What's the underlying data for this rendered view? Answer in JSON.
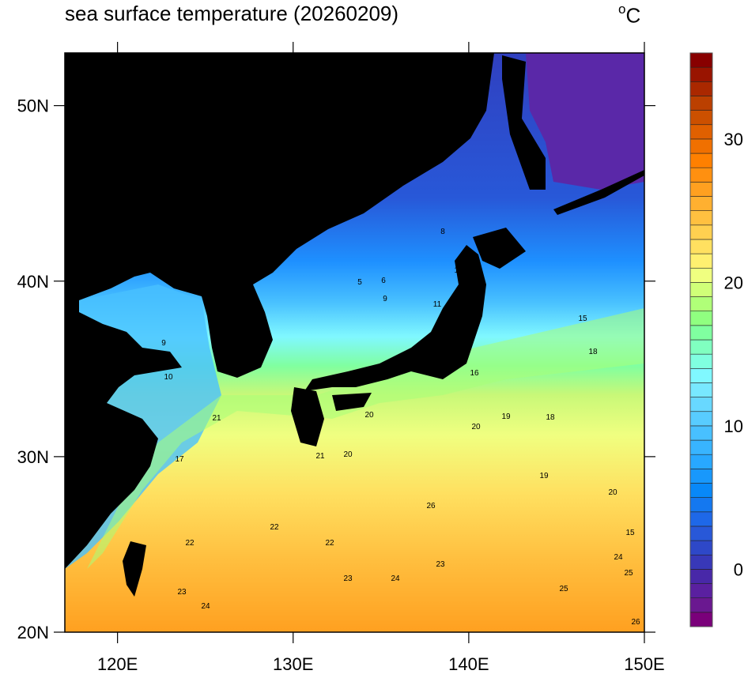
{
  "title": "sea surface temperature (20260209)",
  "unit": {
    "symbol": "o",
    "letter": "C"
  },
  "map": {
    "lon_range": [
      117,
      150
    ],
    "lat_range": [
      20,
      53
    ],
    "x_ticks": [
      {
        "value": 120,
        "label": "120E"
      },
      {
        "value": 130,
        "label": "130E"
      },
      {
        "value": 140,
        "label": "140E"
      },
      {
        "value": 150,
        "label": "150E"
      }
    ],
    "y_ticks": [
      {
        "value": 20,
        "label": "20N"
      },
      {
        "value": 30,
        "label": "30N"
      },
      {
        "value": 40,
        "label": "40N"
      },
      {
        "value": 50,
        "label": "50N"
      }
    ],
    "land_color": "#000000",
    "contour_labels": [
      "5",
      "6",
      "9",
      "10",
      "11",
      "8",
      "9",
      "10",
      "15",
      "18",
      "19",
      "16",
      "20",
      "20",
      "20",
      "19",
      "18",
      "20",
      "21",
      "22",
      "22",
      "23",
      "23",
      "24",
      "24",
      "25",
      "26",
      "26",
      "21",
      "17",
      "15",
      "22",
      "23",
      "24",
      "25"
    ]
  },
  "colorbar": {
    "min": -4,
    "max": 36,
    "step": 1,
    "tick_labels": [
      {
        "value": 0,
        "label": "0"
      },
      {
        "value": 10,
        "label": "10"
      },
      {
        "value": 20,
        "label": "20"
      },
      {
        "value": 30,
        "label": "30"
      }
    ],
    "colors": [
      "#7a007a",
      "#6a1890",
      "#5a20a0",
      "#4828a8",
      "#3838b8",
      "#2e48c8",
      "#2858d8",
      "#1e68e8",
      "#1478f0",
      "#0888f8",
      "#1898fc",
      "#28a8ff",
      "#38b4ff",
      "#48c0ff",
      "#58ccff",
      "#68d8ff",
      "#78e8ff",
      "#80f8ff",
      "#80ffe0",
      "#80ffc0",
      "#80ffa0",
      "#90ff80",
      "#b0ff78",
      "#d0ff78",
      "#f0ff80",
      "#fff070",
      "#ffe060",
      "#ffd050",
      "#ffc040",
      "#ffb030",
      "#ffa020",
      "#ff9010",
      "#ff8000",
      "#f07000",
      "#e06000",
      "#cc5000",
      "#bb4000",
      "#aa2800",
      "#991400",
      "#880000"
    ]
  }
}
